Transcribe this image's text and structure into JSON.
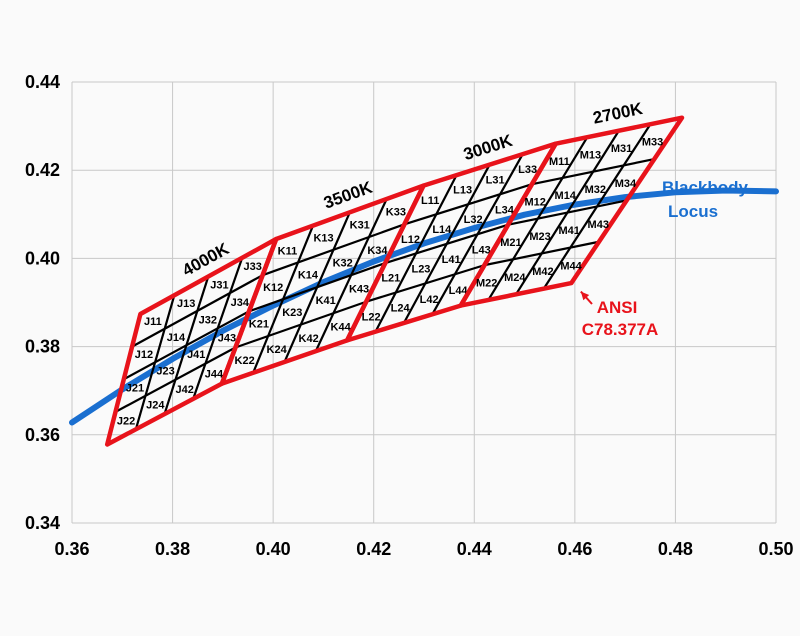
{
  "chart_data": {
    "type": "scatter",
    "title": "",
    "xlabel": "",
    "ylabel": "",
    "xlim": [
      0.36,
      0.5
    ],
    "ylim": [
      0.34,
      0.44
    ],
    "xticks": [
      "0.36",
      "0.38",
      "0.40",
      "0.42",
      "0.44",
      "0.46",
      "0.48",
      "0.50"
    ],
    "yticks": [
      "0.34",
      "0.36",
      "0.38",
      "0.40",
      "0.42",
      "0.44"
    ],
    "grid": true,
    "colors": {
      "grid": "#c8c8c8",
      "quadrangle": "#e8131b",
      "subdivision": "#000000",
      "blackbody": "#1a6fd0",
      "ansi_text": "#e8131b"
    },
    "blackbody_locus": {
      "name": "Blackbody Locus",
      "label_line1": "Blackbody",
      "label_line2": "Locus",
      "x": [
        0.36,
        0.37,
        0.38,
        0.39,
        0.4,
        0.41,
        0.42,
        0.43,
        0.44,
        0.45,
        0.46,
        0.47,
        0.48,
        0.49,
        0.5
      ],
      "y": [
        0.3628,
        0.3703,
        0.3772,
        0.3836,
        0.3893,
        0.3946,
        0.3993,
        0.4034,
        0.4069,
        0.4099,
        0.4122,
        0.4139,
        0.415,
        0.4154,
        0.4152
      ]
    },
    "annotation": {
      "line1": "ANSI",
      "line2": "C78.377A",
      "arrow_from": [
        0.4615,
        0.3902
      ],
      "arrow_to": [
        0.46,
        0.3952
      ]
    },
    "quadrangles": [
      {
        "cct": "4000K",
        "corners": {
          "top_left": [
            0.3736,
            0.3874
          ],
          "top_right": [
            0.4006,
            0.4044
          ],
          "bottom_right": [
            0.3898,
            0.3716
          ],
          "bottom_left": [
            0.367,
            0.3578
          ]
        },
        "cells": [
          "J11",
          "J13",
          "J31",
          "J33",
          "J12",
          "J14",
          "J32",
          "J34",
          "J21",
          "J23",
          "J41",
          "J43",
          "J22",
          "J24",
          "J42",
          "J44"
        ]
      },
      {
        "cct": "3500K",
        "corners": {
          "top_left": [
            0.4006,
            0.4044
          ],
          "top_right": [
            0.4299,
            0.4165
          ],
          "bottom_right": [
            0.4147,
            0.3814
          ],
          "bottom_left": [
            0.3898,
            0.3716
          ]
        },
        "cells": [
          "K11",
          "K13",
          "K31",
          "K33",
          "K12",
          "K14",
          "K32",
          "K34",
          "K21",
          "K23",
          "K41",
          "K43",
          "K22",
          "K24",
          "K42",
          "K44"
        ]
      },
      {
        "cct": "3000K",
        "corners": {
          "top_left": [
            0.4299,
            0.4165
          ],
          "top_right": [
            0.4562,
            0.426
          ],
          "bottom_right": [
            0.4373,
            0.3893
          ],
          "bottom_left": [
            0.4147,
            0.3814
          ]
        },
        "cells": [
          "L11",
          "L13",
          "L31",
          "L33",
          "L12",
          "L14",
          "L32",
          "L34",
          "L21",
          "L23",
          "L41",
          "L43",
          "L22",
          "L24",
          "L42",
          "L44"
        ]
      },
      {
        "cct": "2700K",
        "corners": {
          "top_left": [
            0.4562,
            0.426
          ],
          "top_right": [
            0.4813,
            0.4319
          ],
          "bottom_right": [
            0.4593,
            0.3944
          ],
          "bottom_left": [
            0.4373,
            0.3893
          ]
        },
        "cells": [
          "M11",
          "M13",
          "M31",
          "M33",
          "M12",
          "M14",
          "M32",
          "M34",
          "M21",
          "M23",
          "M41",
          "M43",
          "M22",
          "M24",
          "M42",
          "M44"
        ]
      }
    ]
  }
}
